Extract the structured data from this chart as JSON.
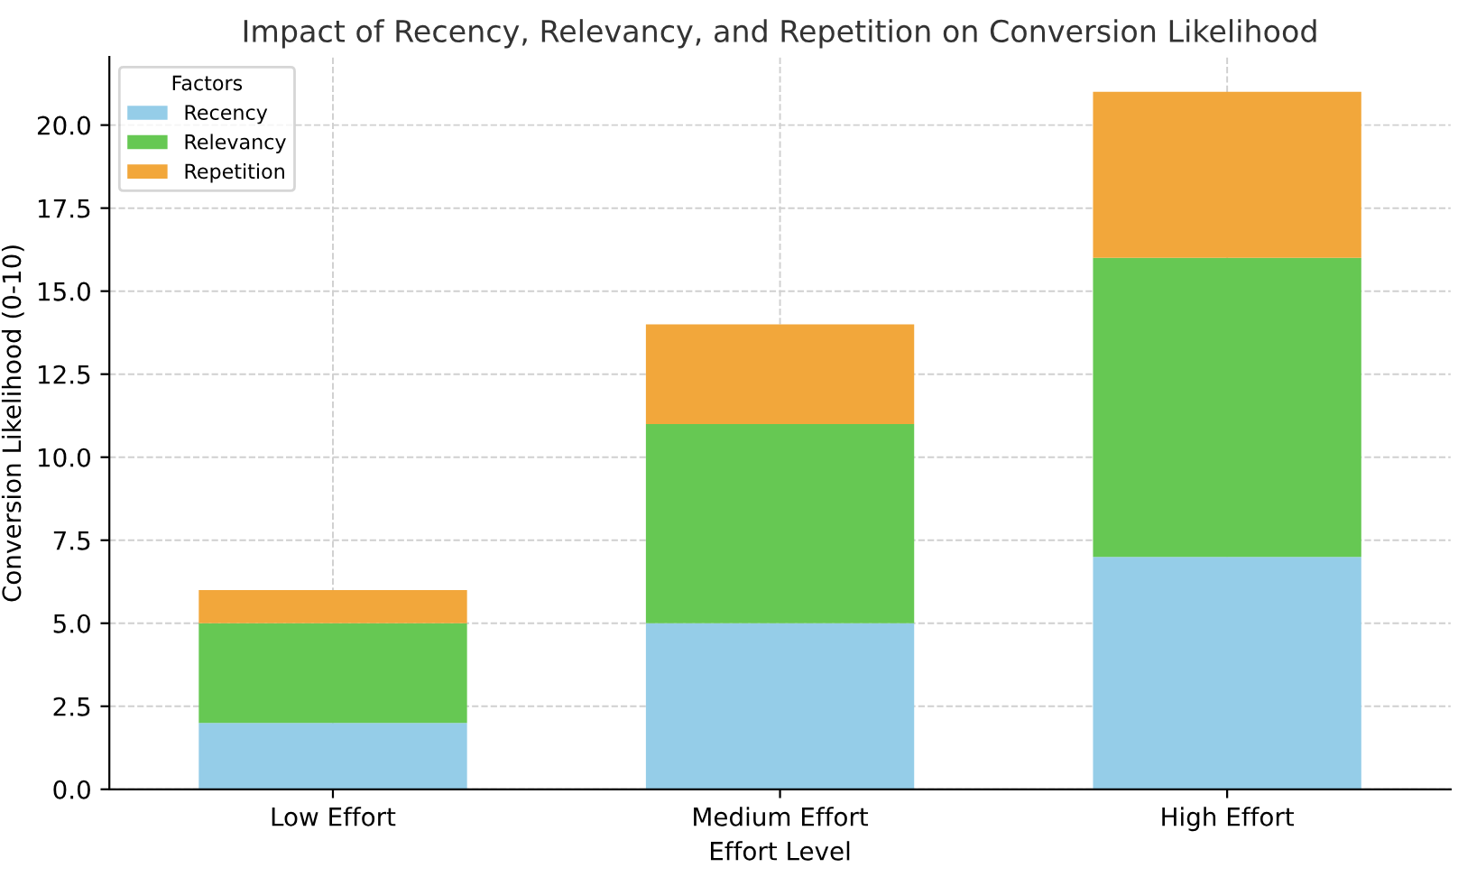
{
  "chart_data": {
    "type": "bar",
    "title": "Impact of Recency, Relevancy, and Repetition on Conversion Likelihood",
    "xlabel": "Effort Level",
    "ylabel": "Conversion Likelihood (0-10)",
    "legend_title": "Factors",
    "categories": [
      "Low Effort",
      "Medium Effort",
      "High Effort"
    ],
    "series": [
      {
        "name": "Recency",
        "color": "#95cde8",
        "values": [
          2,
          5,
          7
        ]
      },
      {
        "name": "Relevancy",
        "color": "#66c853",
        "values": [
          3,
          6,
          9
        ]
      },
      {
        "name": "Repetition",
        "color": "#f2a73b",
        "values": [
          1,
          3,
          5
        ]
      }
    ],
    "stacked": true,
    "ylim": [
      0,
      22.05
    ],
    "yticks": [
      {
        "value": 0,
        "label": "0.0"
      },
      2.5,
      {
        "value": 5,
        "label": "5.0"
      },
      7.5,
      {
        "value": 10,
        "label": "10.0"
      },
      12.5,
      {
        "value": 15,
        "label": "15.0"
      },
      17.5,
      {
        "value": 20,
        "label": "20.0"
      }
    ],
    "grid": true,
    "legend": "top left"
  }
}
